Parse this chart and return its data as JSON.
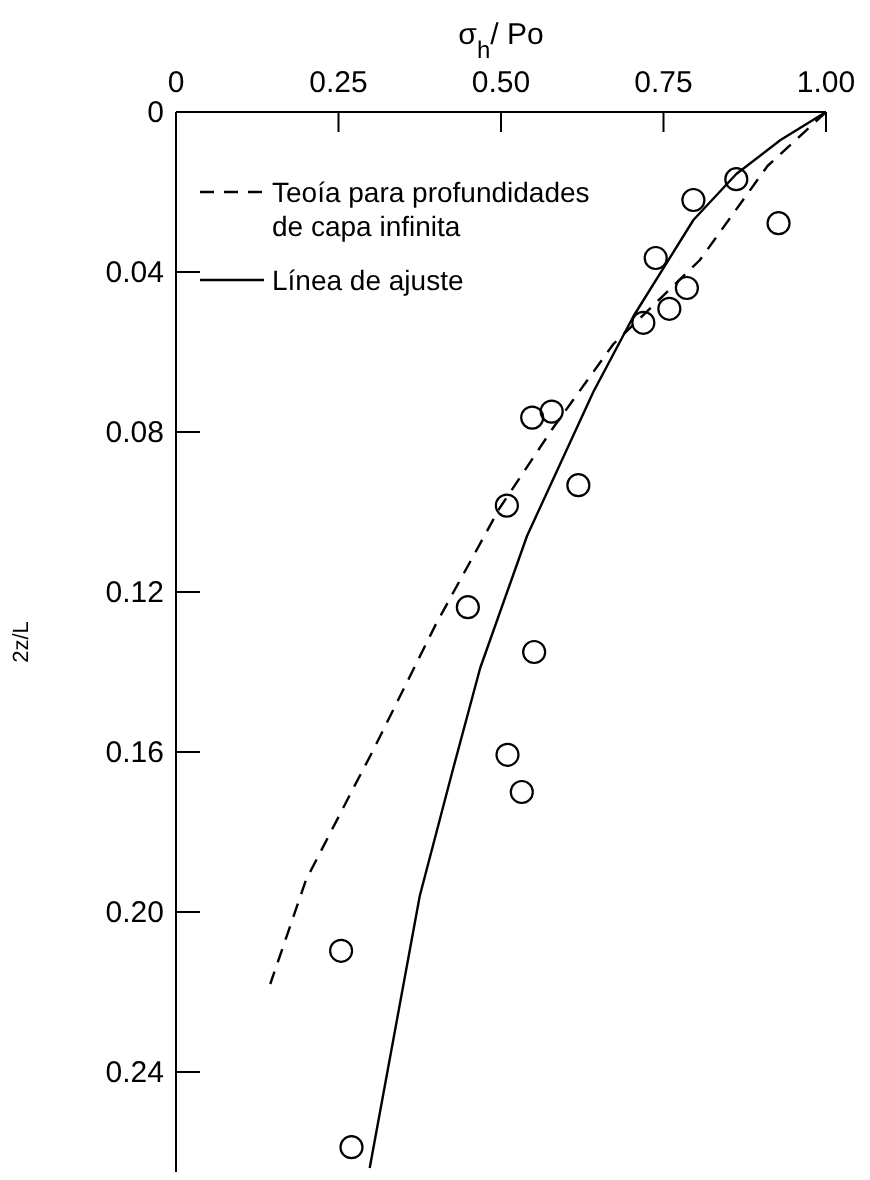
{
  "chart_data": {
    "type": "line",
    "xlabel": "σ$_{h}$/ Po",
    "ylabel": "2z/L",
    "xlim": [
      0,
      1
    ],
    "xticks": [
      0,
      0.25,
      {
        "value": 0.5,
        "label": "0.50"
      },
      0.75,
      {
        "value": 1,
        "label": "1.00"
      }
    ],
    "ylim": [
      0.265,
      0
    ],
    "yticks": [
      0,
      0.04,
      0.08,
      0.12,
      0.16,
      {
        "value": 0.2,
        "label": "0.20"
      },
      0.24
    ],
    "grid": false,
    "legend": "top left",
    "series": [
      {
        "name": "Teoía para profundidades de capa infinita",
        "line_style": "dashed",
        "color": "#000000",
        "x": [
          1,
          0.91,
          0.806,
          0.673,
          0.58,
          0.498,
          0.4,
          0.302,
          0.273,
          0.2,
          0.145
        ],
        "values": [
          0,
          0.0135,
          0.037,
          0.058,
          0.079,
          0.099,
          0.128,
          0.16,
          0.169,
          0.192,
          0.218
        ]
      },
      {
        "name": "Línea de ajuste",
        "line_style": "solid",
        "color": "#000000",
        "x": [
          1,
          0.93,
          0.862,
          0.796,
          0.704,
          0.642,
          0.54,
          0.468,
          0.425,
          0.375,
          0.298
        ],
        "values": [
          0,
          0.007,
          0.0155,
          0.027,
          0.051,
          0.07,
          0.106,
          0.139,
          0.165,
          0.196,
          0.264
        ]
      },
      {
        "type": "scatter",
        "marker": "circle",
        "color": "#000000",
        "x": [
          0.862,
          0.796,
          0.927,
          0.738,
          0.786,
          0.759,
          0.719,
          0.548,
          0.578,
          0.619,
          0.509,
          0.449,
          0.551,
          0.51,
          0.532,
          0.254,
          0.27
        ],
        "values": [
          0.0168,
          0.022,
          0.0278,
          0.0365,
          0.044,
          0.0492,
          0.0527,
          0.0764,
          0.0749,
          0.0933,
          0.0984,
          0.1238,
          0.135,
          0.1607,
          0.17,
          0.2097,
          0.2588
        ]
      }
    ]
  }
}
